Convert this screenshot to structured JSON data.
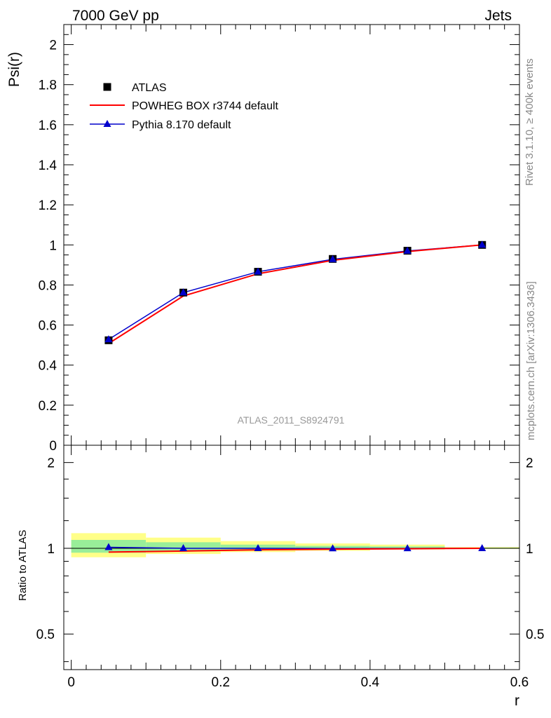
{
  "header": {
    "left": "7000 GeV pp",
    "right": "Jets"
  },
  "side_labels": {
    "rivet": "Rivet 3.1.10, ≥ 400k events",
    "mcplots": "mcplots.cern.ch [arXiv:1306.3436]"
  },
  "analysis_label": "ATLAS_2011_S8924791",
  "colors": {
    "atlas": "#000000",
    "powheg": "#ff0000",
    "pythia": "#0000cc",
    "band_inner": "#99ee99",
    "band_outer": "#ffff88"
  },
  "chart_data": [
    {
      "type": "line",
      "panel": "main",
      "ylabel": "Psi(r)",
      "xlim": [
        -0.01,
        0.6
      ],
      "ylim": [
        0,
        2.1
      ],
      "x_ticks": [
        "0",
        "0.2",
        "0.4",
        "0.6"
      ],
      "y_ticks": [
        "0",
        "0.2",
        "0.4",
        "0.6",
        "0.8",
        "1",
        "1.2",
        "1.4",
        "1.6",
        "1.8",
        "2"
      ],
      "legend_position": "top-left",
      "x": [
        0.05,
        0.15,
        0.25,
        0.35,
        0.45,
        0.55
      ],
      "series": [
        {
          "name": "ATLAS",
          "marker": "square",
          "values": [
            0.524,
            0.762,
            0.866,
            0.93,
            0.971,
            1.0
          ]
        },
        {
          "name": "POWHEG BOX r3744 default",
          "marker": "none",
          "values": [
            0.508,
            0.745,
            0.856,
            0.923,
            0.967,
            1.0
          ]
        },
        {
          "name": "Pythia 8.170 default",
          "marker": "triangle",
          "values": [
            0.528,
            0.762,
            0.866,
            0.928,
            0.97,
            1.0
          ]
        }
      ]
    },
    {
      "type": "line",
      "panel": "ratio",
      "xlabel": "r",
      "ylabel": "Ratio to ATLAS",
      "xlim": [
        -0.01,
        0.6
      ],
      "ylim": [
        0.375,
        2.3
      ],
      "y_ticks": [
        "0.5",
        "1",
        "2"
      ],
      "x": [
        0.05,
        0.15,
        0.25,
        0.35,
        0.45,
        0.55
      ],
      "bin_edges": [
        [
          0.0,
          0.1
        ],
        [
          0.1,
          0.2
        ],
        [
          0.2,
          0.3
        ],
        [
          0.3,
          0.4
        ],
        [
          0.4,
          0.5
        ],
        [
          0.5,
          0.6
        ]
      ],
      "band_outer": [
        [
          0.93,
          1.13
        ],
        [
          0.955,
          1.09
        ],
        [
          0.97,
          1.06
        ],
        [
          0.98,
          1.04
        ],
        [
          0.99,
          1.03
        ],
        [
          0.995,
          1.01
        ]
      ],
      "band_inner": [
        [
          0.965,
          1.07
        ],
        [
          0.975,
          1.05
        ],
        [
          0.985,
          1.03
        ],
        [
          0.99,
          1.02
        ],
        [
          0.995,
          1.015
        ],
        [
          0.998,
          1.005
        ]
      ],
      "series": [
        {
          "name": "POWHEG BOX r3744 default",
          "values": [
            0.97,
            0.978,
            0.988,
            0.993,
            0.996,
            1.0
          ]
        },
        {
          "name": "Pythia 8.170 default",
          "values": [
            1.008,
            1.0,
            1.0,
            0.998,
            0.999,
            1.0
          ]
        }
      ]
    }
  ]
}
